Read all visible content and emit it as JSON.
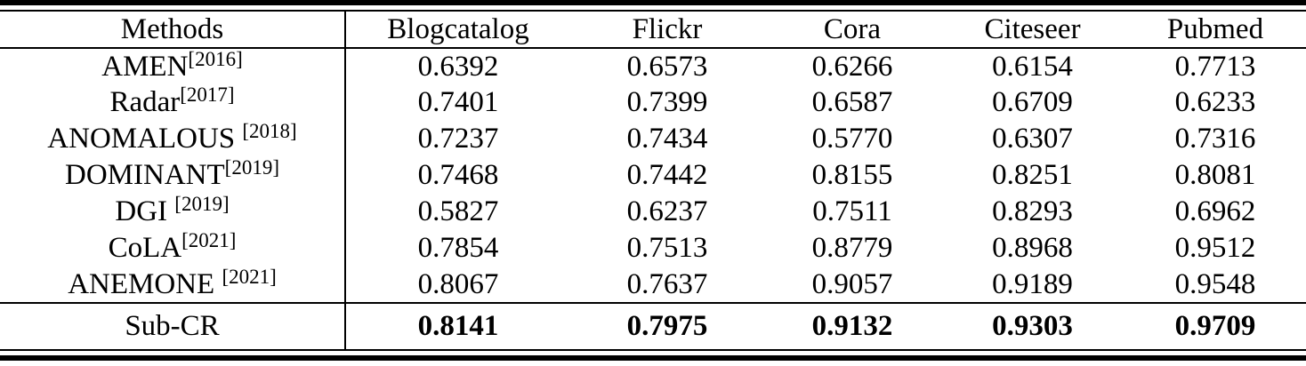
{
  "colors": {
    "text": "#000000",
    "rule": "#000000",
    "background": "#ffffff"
  },
  "table": {
    "columns": [
      "Methods",
      "Blogcatalog",
      "Flickr",
      "Cora",
      "Citeseer",
      "Pubmed"
    ],
    "rows": [
      {
        "method": "AMEN",
        "ref": "[2016]",
        "values": [
          "0.6392",
          "0.6573",
          "0.6266",
          "0.6154",
          "0.7713"
        ]
      },
      {
        "method": "Radar",
        "ref": "[2017]",
        "values": [
          "0.7401",
          "0.7399",
          "0.6587",
          "0.6709",
          "0.6233"
        ]
      },
      {
        "method": "ANOMALOUS ",
        "ref": "[2018]",
        "values": [
          "0.7237",
          "0.7434",
          "0.5770",
          "0.6307",
          "0.7316"
        ]
      },
      {
        "method": "DOMINANT",
        "ref": "[2019]",
        "values": [
          "0.7468",
          "0.7442",
          "0.8155",
          "0.8251",
          "0.8081"
        ]
      },
      {
        "method": "DGI ",
        "ref": "[2019]",
        "values": [
          "0.5827",
          "0.6237",
          "0.7511",
          "0.8293",
          "0.6962"
        ]
      },
      {
        "method": "CoLA",
        "ref": "[2021]",
        "values": [
          "0.7854",
          "0.7513",
          "0.8779",
          "0.8968",
          "0.9512"
        ]
      },
      {
        "method": "ANEMONE ",
        "ref": "[2021]",
        "values": [
          "0.8067",
          "0.7637",
          "0.9057",
          "0.9189",
          "0.9548"
        ]
      }
    ],
    "footer": {
      "method": "Sub-CR",
      "values": [
        "0.8141",
        "0.7975",
        "0.9132",
        "0.9303",
        "0.9709"
      ]
    }
  }
}
